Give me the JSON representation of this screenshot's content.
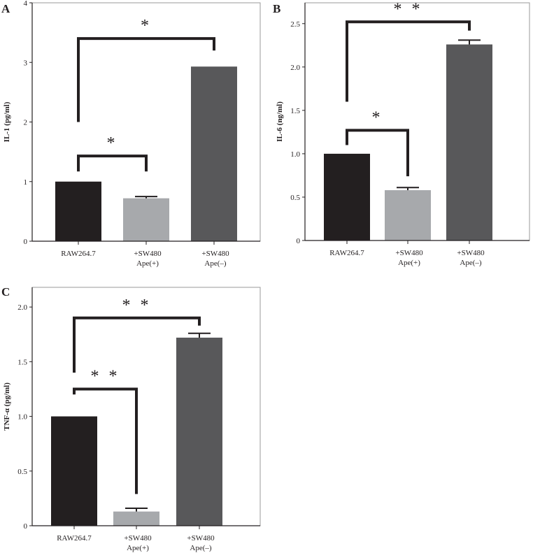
{
  "colors": {
    "raw": "#231f20",
    "ape_pos": "#a7a9ac",
    "ape_neg": "#58585a",
    "axis": "#231f20",
    "frame": "#9a9a9a"
  },
  "chart_data": [
    {
      "panel": "A",
      "type": "bar",
      "ylabel": "IL-1 (pg/ml)",
      "categories": [
        [
          "RAW264.7"
        ],
        [
          "+SW480",
          "Ape(+)"
        ],
        [
          "+SW480",
          "Ape(–)"
        ]
      ],
      "values": [
        1.0,
        0.72,
        2.93
      ],
      "errors": [
        null,
        0.03,
        null
      ],
      "ylim": [
        0,
        4
      ],
      "yticks": [
        0,
        1,
        2,
        3,
        4
      ],
      "ytick_labels": [
        "0",
        "1",
        "2",
        "3",
        "4"
      ],
      "significance": [
        {
          "from": 0,
          "to": 1,
          "y": 1.43,
          "left_end": 1.17,
          "right_end": 1.17,
          "label": "*"
        },
        {
          "from": 0,
          "to": 2,
          "y": 3.4,
          "left_end": 2.0,
          "right_end": 3.2,
          "label": "*"
        }
      ]
    },
    {
      "panel": "B",
      "type": "bar",
      "ylabel": "IL-6 (ng/ml)",
      "categories": [
        [
          "RAW264.7"
        ],
        [
          "+SW480",
          "Ape(+)"
        ],
        [
          "+SW480",
          "Ape(–)"
        ]
      ],
      "values": [
        1.0,
        0.58,
        2.26
      ],
      "errors": [
        null,
        0.03,
        0.05
      ],
      "ylim": [
        0,
        2.74
      ],
      "yticks": [
        0,
        0.5,
        1.0,
        1.5,
        2.0,
        2.5
      ],
      "ytick_labels": [
        "0",
        "0.5",
        "1.0",
        "1.5",
        "2.0",
        "2.5"
      ],
      "significance": [
        {
          "from": 0,
          "to": 1,
          "y": 1.27,
          "left_end": 1.1,
          "right_end": 0.74,
          "label": "*"
        },
        {
          "from": 0,
          "to": 2,
          "y": 2.52,
          "left_end": 1.6,
          "right_end": 2.42,
          "label": "**"
        }
      ]
    },
    {
      "panel": "C",
      "type": "bar",
      "ylabel": "TNF-α (pg/ml)",
      "categories": [
        [
          "RAW264.7"
        ],
        [
          "+SW480",
          "Ape(+)"
        ],
        [
          "+SW480",
          "Ape(–)"
        ]
      ],
      "values": [
        1.0,
        0.13,
        1.72
      ],
      "errors": [
        null,
        0.03,
        0.04
      ],
      "ylim": [
        0,
        2.18
      ],
      "yticks": [
        0,
        0.5,
        1.0,
        1.5,
        2.0
      ],
      "ytick_labels": [
        "0",
        "0.5",
        "1.0",
        "1.5",
        "2.0"
      ],
      "significance": [
        {
          "from": 0,
          "to": 1,
          "y": 1.25,
          "left_end": 1.2,
          "right_end": 0.29,
          "label": "**"
        },
        {
          "from": 0,
          "to": 2,
          "y": 1.9,
          "left_end": 1.4,
          "right_end": 1.83,
          "label": "**"
        }
      ]
    }
  ]
}
